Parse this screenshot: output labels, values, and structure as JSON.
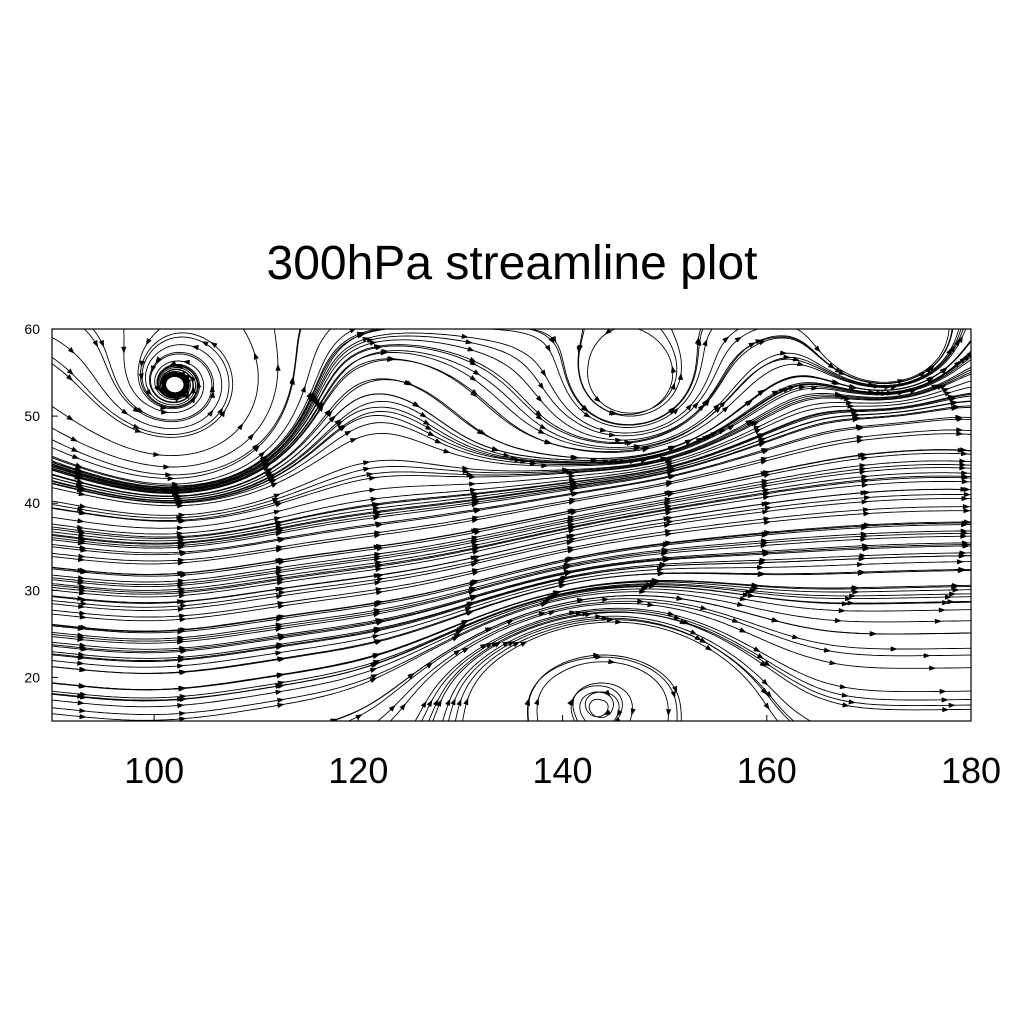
{
  "chart_data": {
    "type": "streamline",
    "title": "300hPa streamline plot",
    "xlabel": "",
    "ylabel": "",
    "xlim": [
      90,
      180
    ],
    "ylim": [
      15,
      60
    ],
    "xticks": [
      100,
      120,
      140,
      160,
      180
    ],
    "xtick_labels": [
      "100",
      "120",
      "140",
      "160",
      "180"
    ],
    "yticks": [
      20,
      30,
      40,
      50,
      60
    ],
    "ytick_labels": [
      "20",
      "30",
      "40",
      "50",
      "60"
    ],
    "grid": false,
    "colors": {
      "line": "#000000",
      "background": "#ffffff"
    },
    "features": [
      {
        "kind": "jet-axis",
        "description": "westerly flow converging toward ~33N at 120E and ~43N at 160E"
      },
      {
        "kind": "cyclonic-eddy",
        "x": 147,
        "y": 53
      },
      {
        "kind": "cyclonic-eddy",
        "x": 172,
        "y": 57
      },
      {
        "kind": "anticyclonic-gyre",
        "x": 143,
        "y": 16
      },
      {
        "kind": "cutoff-low",
        "x": 105,
        "y": 51
      }
    ]
  }
}
